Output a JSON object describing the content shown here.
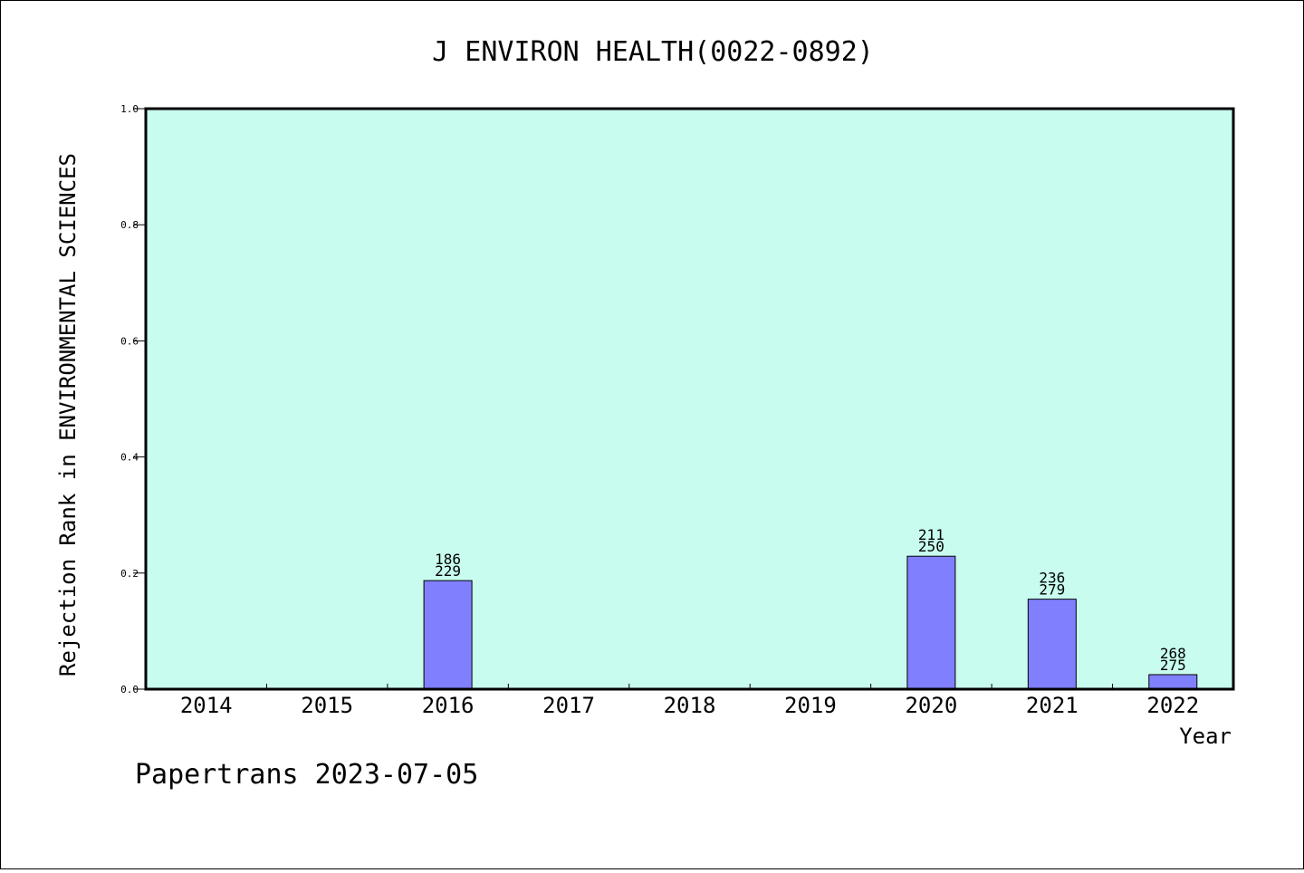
{
  "chart_data": {
    "type": "bar",
    "title": "J ENVIRON HEALTH(0022-0892)",
    "xlabel": "Year",
    "ylabel": "Rejection Rank in ENVIRONMENTAL SCIENCES",
    "ylim": [
      0,
      1.0
    ],
    "yticks": [
      "0.0",
      "0.2",
      "0.4",
      "0.6",
      "0.8",
      "1.0"
    ],
    "categories": [
      "2014",
      "2015",
      "2016",
      "2017",
      "2018",
      "2019",
      "2020",
      "2021",
      "2022"
    ],
    "values": [
      0,
      0,
      0.187,
      0,
      0,
      0,
      0.229,
      0.155,
      0.025
    ],
    "labels_top": [
      "",
      "",
      "186",
      "",
      "",
      "",
      "211",
      "236",
      "268"
    ],
    "labels_bottom": [
      "",
      "",
      "229",
      "",
      "",
      "",
      "250",
      "279",
      "275"
    ],
    "grid": false,
    "colors": {
      "plot_background": "#c8fcee",
      "bar_fill": "#8080ff",
      "bar_stroke": "#000000"
    }
  },
  "footer": "Papertrans 2023-07-05"
}
